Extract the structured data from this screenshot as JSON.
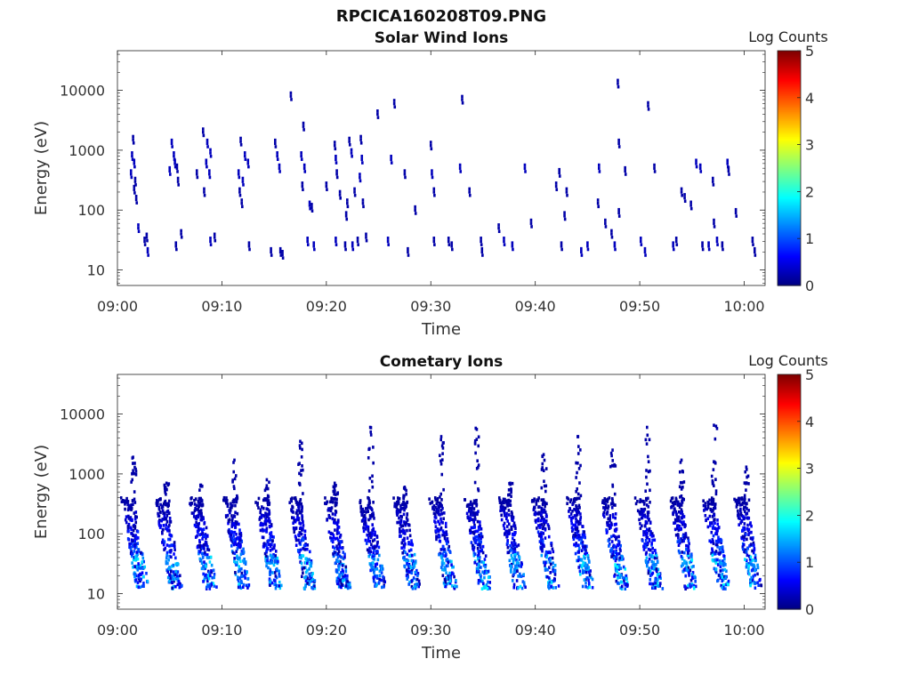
{
  "figure": {
    "title": "RPCICA160208T09.PNG"
  },
  "chart_data": [
    {
      "type": "heatmap",
      "title": "Solar Wind Ions",
      "xlabel": "Time",
      "ylabel": "Energy (eV)",
      "x_ticks": [
        "09:00",
        "09:10",
        "09:20",
        "09:30",
        "09:40",
        "09:50",
        "10:00"
      ],
      "x_range_minutes": [
        0,
        62
      ],
      "y_scale": "log",
      "y_ticks": [
        "10",
        "100",
        "1000",
        "10000"
      ],
      "y_range": [
        5.5,
        46000
      ],
      "colorbar": {
        "label": "Log Counts",
        "range": [
          0,
          5
        ],
        "ticks": [
          "0",
          "1",
          "2",
          "3",
          "4",
          "5"
        ],
        "colormap": "jet"
      },
      "points": [
        {
          "t": 1.5,
          "e": 1500,
          "v": 0.2
        },
        {
          "t": 1.4,
          "e": 800,
          "v": 0.3
        },
        {
          "t": 1.6,
          "e": 600,
          "v": 0.3
        },
        {
          "t": 1.3,
          "e": 400,
          "v": 0.3
        },
        {
          "t": 1.7,
          "e": 300,
          "v": 0.2
        },
        {
          "t": 1.8,
          "e": 150,
          "v": 0.2
        },
        {
          "t": 1.6,
          "e": 220,
          "v": 0.2
        },
        {
          "t": 2.0,
          "e": 50,
          "v": 0.3
        },
        {
          "t": 2.6,
          "e": 30,
          "v": 0.2
        },
        {
          "t": 2.9,
          "e": 20,
          "v": 0.3
        },
        {
          "t": 2.8,
          "e": 35,
          "v": 0.2
        },
        {
          "t": 5.2,
          "e": 1300,
          "v": 0.3
        },
        {
          "t": 5.4,
          "e": 800,
          "v": 0.3
        },
        {
          "t": 5.5,
          "e": 600,
          "v": 0.3
        },
        {
          "t": 5.0,
          "e": 450,
          "v": 0.3
        },
        {
          "t": 5.7,
          "e": 500,
          "v": 0.2
        },
        {
          "t": 5.8,
          "e": 300,
          "v": 0.2
        },
        {
          "t": 5.6,
          "e": 25,
          "v": 0.2
        },
        {
          "t": 6.1,
          "e": 40,
          "v": 0.2
        },
        {
          "t": 8.2,
          "e": 2000,
          "v": 0.2
        },
        {
          "t": 8.6,
          "e": 1300,
          "v": 0.3
        },
        {
          "t": 8.9,
          "e": 900,
          "v": 0.3
        },
        {
          "t": 8.5,
          "e": 600,
          "v": 0.3
        },
        {
          "t": 8.8,
          "e": 400,
          "v": 0.3
        },
        {
          "t": 8.3,
          "e": 200,
          "v": 0.2
        },
        {
          "t": 7.6,
          "e": 400,
          "v": 0.2
        },
        {
          "t": 8.9,
          "e": 30,
          "v": 0.3
        },
        {
          "t": 9.3,
          "e": 35,
          "v": 0.2
        },
        {
          "t": 11.8,
          "e": 1400,
          "v": 0.2
        },
        {
          "t": 12.2,
          "e": 800,
          "v": 0.3
        },
        {
          "t": 12.5,
          "e": 600,
          "v": 0.3
        },
        {
          "t": 11.6,
          "e": 400,
          "v": 0.3
        },
        {
          "t": 12.0,
          "e": 300,
          "v": 0.3
        },
        {
          "t": 11.7,
          "e": 200,
          "v": 0.2
        },
        {
          "t": 11.9,
          "e": 130,
          "v": 0.2
        },
        {
          "t": 12.6,
          "e": 25,
          "v": 0.2
        },
        {
          "t": 15.1,
          "e": 1300,
          "v": 0.2
        },
        {
          "t": 15.3,
          "e": 800,
          "v": 0.3
        },
        {
          "t": 15.5,
          "e": 500,
          "v": 0.3
        },
        {
          "t": 16.6,
          "e": 8000,
          "v": 0.2
        },
        {
          "t": 14.7,
          "e": 20,
          "v": 0.2
        },
        {
          "t": 15.6,
          "e": 20,
          "v": 0.2
        },
        {
          "t": 15.8,
          "e": 18,
          "v": 0.2
        },
        {
          "t": 17.8,
          "e": 2500,
          "v": 0.2
        },
        {
          "t": 17.6,
          "e": 800,
          "v": 0.3
        },
        {
          "t": 17.9,
          "e": 500,
          "v": 0.3
        },
        {
          "t": 17.7,
          "e": 250,
          "v": 0.2
        },
        {
          "t": 18.4,
          "e": 120,
          "v": 0.3
        },
        {
          "t": 18.6,
          "e": 110,
          "v": 0.2
        },
        {
          "t": 18.2,
          "e": 30,
          "v": 0.3
        },
        {
          "t": 18.8,
          "e": 25,
          "v": 0.3
        },
        {
          "t": 20.8,
          "e": 1200,
          "v": 0.2
        },
        {
          "t": 20.9,
          "e": 700,
          "v": 0.3
        },
        {
          "t": 21.0,
          "e": 400,
          "v": 0.2
        },
        {
          "t": 20.0,
          "e": 250,
          "v": 0.2
        },
        {
          "t": 21.3,
          "e": 180,
          "v": 0.2
        },
        {
          "t": 20.9,
          "e": 30,
          "v": 0.3
        },
        {
          "t": 21.8,
          "e": 25,
          "v": 0.2
        },
        {
          "t": 22.2,
          "e": 1400,
          "v": 0.2
        },
        {
          "t": 22.4,
          "e": 900,
          "v": 0.3
        },
        {
          "t": 23.3,
          "e": 1500,
          "v": 0.2
        },
        {
          "t": 23.4,
          "e": 700,
          "v": 0.3
        },
        {
          "t": 23.2,
          "e": 350,
          "v": 0.3
        },
        {
          "t": 22.7,
          "e": 200,
          "v": 0.2
        },
        {
          "t": 22.0,
          "e": 130,
          "v": 0.2
        },
        {
          "t": 21.9,
          "e": 80,
          "v": 0.2
        },
        {
          "t": 23.5,
          "e": 130,
          "v": 0.2
        },
        {
          "t": 22.5,
          "e": 25,
          "v": 0.3
        },
        {
          "t": 23.0,
          "e": 30,
          "v": 0.2
        },
        {
          "t": 23.8,
          "e": 35,
          "v": 0.2
        },
        {
          "t": 24.9,
          "e": 4000,
          "v": 0.2
        },
        {
          "t": 26.5,
          "e": 6000,
          "v": 0.2
        },
        {
          "t": 26.2,
          "e": 700,
          "v": 0.3
        },
        {
          "t": 27.5,
          "e": 400,
          "v": 0.2
        },
        {
          "t": 28.5,
          "e": 100,
          "v": 0.2
        },
        {
          "t": 25.9,
          "e": 30,
          "v": 0.3
        },
        {
          "t": 27.8,
          "e": 20,
          "v": 0.2
        },
        {
          "t": 30.3,
          "e": 30,
          "v": 0.2
        },
        {
          "t": 30.0,
          "e": 1200,
          "v": 0.2
        },
        {
          "t": 30.1,
          "e": 400,
          "v": 0.3
        },
        {
          "t": 30.3,
          "e": 200,
          "v": 0.2
        },
        {
          "t": 33.0,
          "e": 7000,
          "v": 0.2
        },
        {
          "t": 32.8,
          "e": 500,
          "v": 0.3
        },
        {
          "t": 33.7,
          "e": 200,
          "v": 0.2
        },
        {
          "t": 31.7,
          "e": 30,
          "v": 0.2
        },
        {
          "t": 32.0,
          "e": 25,
          "v": 0.2
        },
        {
          "t": 34.8,
          "e": 30,
          "v": 0.2
        },
        {
          "t": 34.9,
          "e": 20,
          "v": 0.2
        },
        {
          "t": 36.5,
          "e": 50,
          "v": 0.2
        },
        {
          "t": 37.0,
          "e": 30,
          "v": 0.3
        },
        {
          "t": 37.8,
          "e": 25,
          "v": 0.3
        },
        {
          "t": 39.0,
          "e": 500,
          "v": 0.3
        },
        {
          "t": 39.6,
          "e": 60,
          "v": 0.2
        },
        {
          "t": 42.5,
          "e": 25,
          "v": 0.2
        },
        {
          "t": 42.3,
          "e": 420,
          "v": 0.2
        },
        {
          "t": 42.0,
          "e": 250,
          "v": 0.2
        },
        {
          "t": 43.0,
          "e": 200,
          "v": 0.2
        },
        {
          "t": 42.8,
          "e": 80,
          "v": 0.2
        },
        {
          "t": 44.4,
          "e": 20,
          "v": 0.3
        },
        {
          "t": 45.0,
          "e": 25,
          "v": 0.3
        },
        {
          "t": 46.1,
          "e": 500,
          "v": 0.3
        },
        {
          "t": 46.0,
          "e": 130,
          "v": 0.2
        },
        {
          "t": 46.7,
          "e": 60,
          "v": 0.2
        },
        {
          "t": 47.3,
          "e": 40,
          "v": 0.2
        },
        {
          "t": 47.6,
          "e": 25,
          "v": 0.3
        },
        {
          "t": 47.9,
          "e": 13000,
          "v": 0.2
        },
        {
          "t": 48.0,
          "e": 1300,
          "v": 0.2
        },
        {
          "t": 48.0,
          "e": 90,
          "v": 0.2
        },
        {
          "t": 48.6,
          "e": 450,
          "v": 0.2
        },
        {
          "t": 50.1,
          "e": 30,
          "v": 0.3
        },
        {
          "t": 50.5,
          "e": 20,
          "v": 0.3
        },
        {
          "t": 50.8,
          "e": 5500,
          "v": 0.2
        },
        {
          "t": 51.4,
          "e": 500,
          "v": 0.2
        },
        {
          "t": 53.2,
          "e": 25,
          "v": 0.3
        },
        {
          "t": 53.5,
          "e": 30,
          "v": 0.2
        },
        {
          "t": 54.0,
          "e": 200,
          "v": 0.2
        },
        {
          "t": 54.3,
          "e": 160,
          "v": 0.2
        },
        {
          "t": 54.9,
          "e": 120,
          "v": 0.2
        },
        {
          "t": 55.4,
          "e": 600,
          "v": 0.3
        },
        {
          "t": 55.8,
          "e": 500,
          "v": 0.3
        },
        {
          "t": 56.0,
          "e": 25,
          "v": 0.2
        },
        {
          "t": 56.6,
          "e": 25,
          "v": 0.3
        },
        {
          "t": 57.0,
          "e": 300,
          "v": 0.2
        },
        {
          "t": 57.1,
          "e": 60,
          "v": 0.2
        },
        {
          "t": 57.4,
          "e": 30,
          "v": 0.3
        },
        {
          "t": 57.9,
          "e": 25,
          "v": 0.2
        },
        {
          "t": 58.4,
          "e": 600,
          "v": 0.3
        },
        {
          "t": 58.5,
          "e": 450,
          "v": 0.2
        },
        {
          "t": 59.2,
          "e": 90,
          "v": 0.2
        },
        {
          "t": 60.8,
          "e": 30,
          "v": 0.2
        },
        {
          "t": 61.0,
          "e": 20,
          "v": 0.2
        }
      ]
    },
    {
      "type": "heatmap",
      "title": "Cometary Ions",
      "xlabel": "Time",
      "ylabel": "Energy (eV)",
      "x_ticks": [
        "09:00",
        "09:10",
        "09:20",
        "09:30",
        "09:40",
        "09:50",
        "10:00"
      ],
      "x_range_minutes": [
        0,
        62
      ],
      "y_scale": "log",
      "y_ticks": [
        "10",
        "100",
        "1000",
        "10000"
      ],
      "y_range": [
        5.5,
        46000
      ],
      "colorbar": {
        "label": "Log Counts",
        "range": [
          0,
          5
        ],
        "ticks": [
          "0",
          "1",
          "2",
          "3",
          "4",
          "5"
        ],
        "colormap": "jet"
      },
      "bursts": [
        {
          "t": 2.2,
          "top": 1900,
          "peak": 1.9
        },
        {
          "t": 5.4,
          "top": 700,
          "peak": 1.7
        },
        {
          "t": 8.7,
          "top": 650,
          "peak": 1.8
        },
        {
          "t": 11.9,
          "top": 1700,
          "peak": 1.8
        },
        {
          "t": 15.0,
          "top": 800,
          "peak": 1.7
        },
        {
          "t": 18.2,
          "top": 3500,
          "peak": 1.9
        },
        {
          "t": 21.5,
          "top": 700,
          "peak": 1.6
        },
        {
          "t": 24.9,
          "top": 6000,
          "peak": 1.6
        },
        {
          "t": 28.2,
          "top": 600,
          "peak": 1.7
        },
        {
          "t": 31.7,
          "top": 4200,
          "peak": 1.7
        },
        {
          "t": 35.0,
          "top": 5800,
          "peak": 1.8
        },
        {
          "t": 38.3,
          "top": 700,
          "peak": 1.7
        },
        {
          "t": 41.5,
          "top": 2100,
          "peak": 1.8
        },
        {
          "t": 44.8,
          "top": 4200,
          "peak": 1.9
        },
        {
          "t": 48.1,
          "top": 2500,
          "peak": 1.9
        },
        {
          "t": 51.4,
          "top": 6000,
          "peak": 1.8
        },
        {
          "t": 54.7,
          "top": 1700,
          "peak": 1.9
        },
        {
          "t": 57.8,
          "top": 6500,
          "peak": 1.9
        },
        {
          "t": 60.9,
          "top": 1300,
          "peak": 1.8
        }
      ]
    }
  ]
}
